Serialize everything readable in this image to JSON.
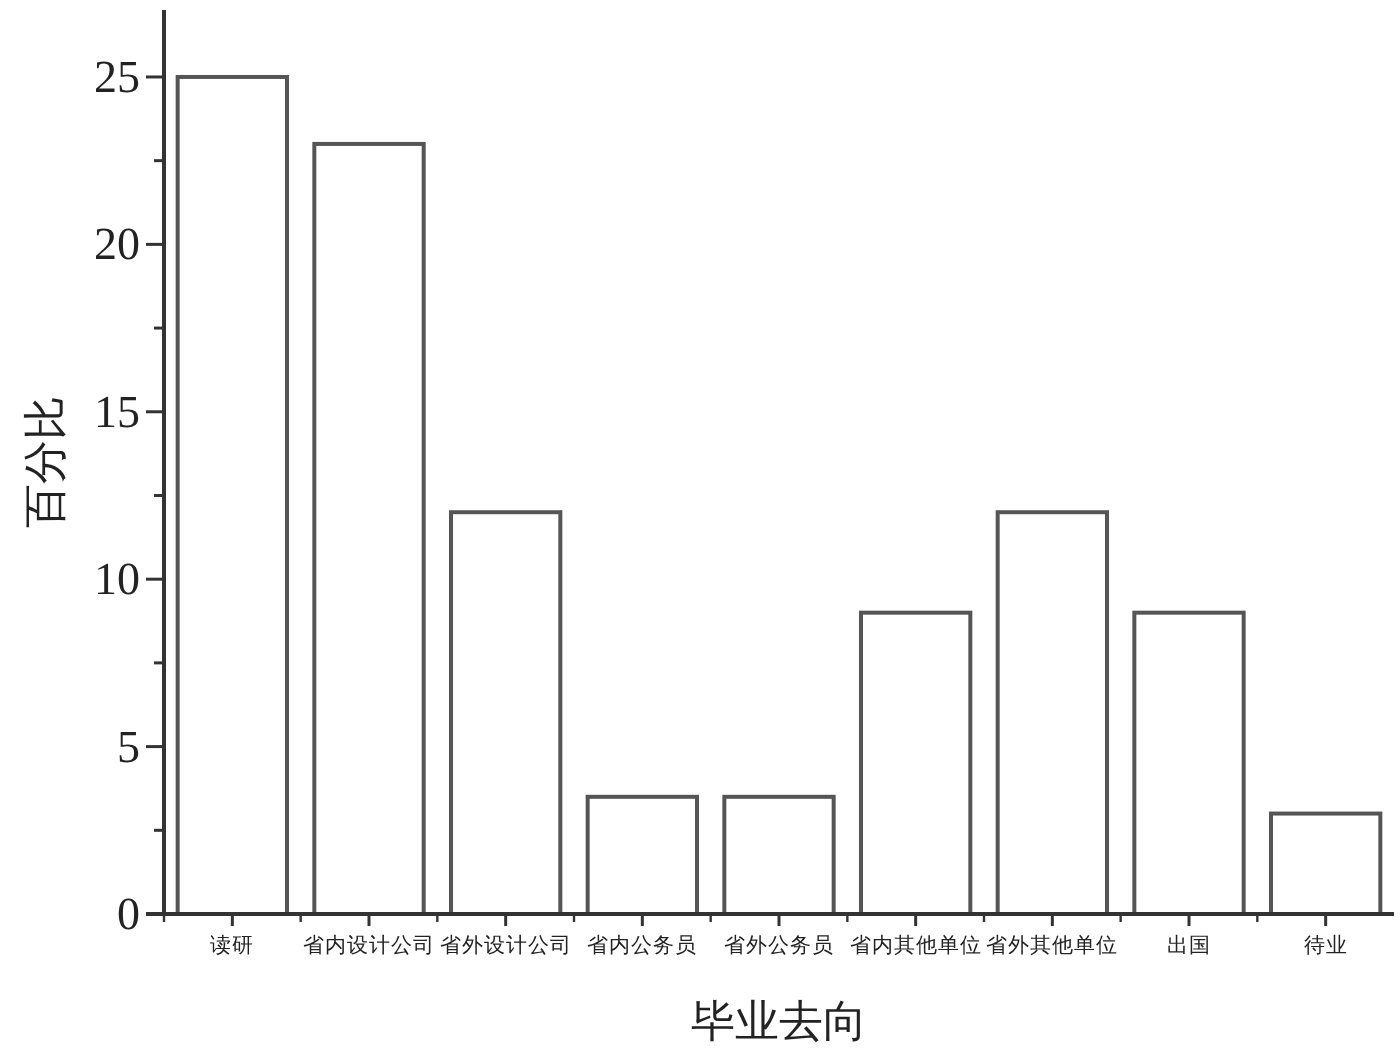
{
  "chart_data": {
    "type": "bar",
    "categories": [
      "读研",
      "省内设计公司",
      "省外设计公司",
      "省内公务员",
      "省外公务员",
      "省内其他单位",
      "省外其他单位",
      "出国",
      "待业"
    ],
    "values": [
      25,
      23,
      12,
      3.5,
      3.5,
      9,
      12,
      9,
      3
    ],
    "color": "#ffffff",
    "xlabel": "毕业去向",
    "ylabel": "百分比",
    "ylim": [
      0,
      27
    ],
    "yticks": [
      0,
      {
        "value": 2.5,
        "label": null
      },
      5,
      {
        "value": 7.5,
        "label": null
      },
      10,
      {
        "value": 12.5,
        "label": null
      },
      15,
      {
        "value": 17.5,
        "label": null
      },
      20,
      {
        "value": 22.5,
        "label": null
      },
      25
    ]
  }
}
